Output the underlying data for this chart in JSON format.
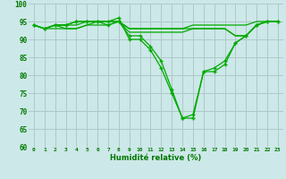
{
  "xlabel": "Humidité relative (%)",
  "background_color": "#cce8e8",
  "grid_color": "#b0c8c8",
  "line_color": "#00aa00",
  "xlim": [
    -0.5,
    23.5
  ],
  "ylim": [
    60,
    100
  ],
  "yticks": [
    60,
    65,
    70,
    75,
    80,
    85,
    90,
    95,
    100
  ],
  "xticks": [
    0,
    1,
    2,
    3,
    4,
    5,
    6,
    7,
    8,
    9,
    10,
    11,
    12,
    13,
    14,
    15,
    16,
    17,
    18,
    19,
    20,
    21,
    22,
    23
  ],
  "series": [
    {
      "y": [
        94,
        93,
        94,
        94,
        95,
        95,
        95,
        95,
        96,
        90,
        90,
        87,
        82,
        75,
        68,
        68,
        81,
        81,
        83,
        89,
        91,
        94,
        95,
        95
      ],
      "marker": true
    },
    {
      "y": [
        94,
        93,
        94,
        94,
        95,
        95,
        95,
        94,
        95,
        91,
        91,
        88,
        84,
        76,
        68,
        69,
        81,
        82,
        84,
        89,
        91,
        94,
        95,
        95
      ],
      "marker": true
    },
    {
      "y": [
        94,
        93,
        94,
        94,
        94,
        95,
        95,
        95,
        95,
        92,
        92,
        92,
        92,
        92,
        92,
        93,
        93,
        93,
        93,
        91,
        91,
        94,
        95,
        95
      ],
      "marker": false
    },
    {
      "y": [
        94,
        93,
        94,
        93,
        93,
        94,
        94,
        94,
        95,
        93,
        93,
        93,
        93,
        93,
        93,
        93,
        93,
        93,
        93,
        91,
        91,
        94,
        95,
        95
      ],
      "marker": false
    },
    {
      "y": [
        94,
        93,
        93,
        93,
        93,
        94,
        95,
        95,
        95,
        93,
        93,
        93,
        93,
        93,
        93,
        94,
        94,
        94,
        94,
        94,
        94,
        95,
        95,
        95
      ],
      "marker": false
    }
  ]
}
